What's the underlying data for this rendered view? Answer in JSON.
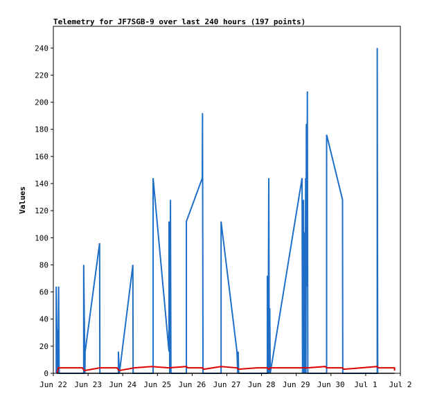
{
  "chart_data": {
    "type": "line",
    "title": "Telemetry for JF7SGB-9 over last 240 hours (197 points)",
    "xlabel": "",
    "ylabel": "Values",
    "grid": false,
    "legend": "none",
    "xlim": [
      "2021-06-22T00:00",
      "2021-07-02T00:00"
    ],
    "ylim": [
      0,
      256
    ],
    "x_ticks": [
      "Jun 22",
      "Jun 23",
      "Jun 24",
      "Jun 25",
      "Jun 26",
      "Jun 27",
      "Jun 28",
      "Jun 29",
      "Jun 30",
      "Jul 1",
      "Jul 2"
    ],
    "y_ticks": [
      0,
      20,
      40,
      60,
      80,
      100,
      120,
      140,
      160,
      180,
      200,
      220,
      240
    ],
    "colors": {
      "series_1": "#1e6ec8",
      "series_2": "#dd0000",
      "series_3": "#000000"
    },
    "series": [
      {
        "points": [
          [
            "2021-06-22T02:00",
            0
          ],
          [
            "2021-06-22T02:00",
            64
          ],
          [
            "2021-06-22T02:50",
            0
          ],
          [
            "2021-06-22T03:00",
            32
          ],
          [
            "2021-06-22T03:20",
            0
          ],
          [
            "2021-06-22T03:40",
            64
          ],
          [
            "2021-06-22T04:00",
            0
          ],
          [
            "2021-06-22T04:00",
            0
          ],
          [
            "2021-06-22T21:00",
            0
          ],
          [
            "2021-06-22T21:00",
            80
          ],
          [
            "2021-06-22T21:50",
            0
          ],
          [
            "2021-06-22T22:00",
            16
          ],
          [
            "2021-06-23T08:00",
            96
          ],
          [
            "2021-06-23T08:10",
            0
          ],
          [
            "2021-06-23T21:00",
            0
          ],
          [
            "2021-06-23T21:00",
            16
          ],
          [
            "2021-06-23T21:40",
            0
          ],
          [
            "2021-06-24T07:00",
            80
          ],
          [
            "2021-06-24T07:10",
            0
          ],
          [
            "2021-06-24T21:00",
            0
          ],
          [
            "2021-06-24T21:00",
            144
          ],
          [
            "2021-06-25T08:00",
            16
          ],
          [
            "2021-06-25T08:00",
            112
          ],
          [
            "2021-06-25T08:30",
            0
          ],
          [
            "2021-06-25T09:00",
            128
          ],
          [
            "2021-06-25T09:20",
            0
          ],
          [
            "2021-06-25T20:00",
            0
          ],
          [
            "2021-06-25T20:00",
            112
          ],
          [
            "2021-06-26T07:00",
            144
          ],
          [
            "2021-06-26T07:10",
            192
          ],
          [
            "2021-06-26T07:30",
            0
          ],
          [
            "2021-06-26T20:00",
            0
          ],
          [
            "2021-06-26T20:00",
            112
          ],
          [
            "2021-06-27T07:00",
            16
          ],
          [
            "2021-06-27T07:30",
            0
          ],
          [
            "2021-06-27T07:50",
            16
          ],
          [
            "2021-06-27T08:10",
            0
          ],
          [
            "2021-06-28T04:00",
            0
          ],
          [
            "2021-06-28T04:00",
            72
          ],
          [
            "2021-06-28T04:30",
            0
          ],
          [
            "2021-06-28T05:00",
            144
          ],
          [
            "2021-06-28T05:20",
            0
          ],
          [
            "2021-06-28T05:40",
            48
          ],
          [
            "2021-06-28T06:00",
            0
          ],
          [
            "2021-06-29T04:00",
            144
          ],
          [
            "2021-06-29T04:20",
            0
          ],
          [
            "2021-06-29T05:00",
            128
          ],
          [
            "2021-06-29T05:20",
            0
          ],
          [
            "2021-06-29T05:40",
            104
          ],
          [
            "2021-06-29T06:00",
            0
          ],
          [
            "2021-06-29T06:30",
            144
          ],
          [
            "2021-06-29T06:40",
            0
          ],
          [
            "2021-06-29T07:00",
            184
          ],
          [
            "2021-06-29T07:20",
            64
          ],
          [
            "2021-06-29T07:40",
            208
          ],
          [
            "2021-06-29T08:00",
            0
          ],
          [
            "2021-06-29T21:00",
            0
          ],
          [
            "2021-06-29T21:00",
            176
          ],
          [
            "2021-06-30T08:00",
            128
          ],
          [
            "2021-06-30T08:10",
            0
          ],
          [
            "2021-07-01T08:00",
            0
          ],
          [
            "2021-07-01T08:00",
            240
          ],
          [
            "2021-07-01T08:20",
            0
          ]
        ]
      },
      {
        "points": [
          [
            "2021-06-22T02:30",
            0
          ],
          [
            "2021-06-22T03:30",
            4
          ],
          [
            "2021-06-22T04:30",
            4
          ],
          [
            "2021-06-22T20:00",
            4
          ],
          [
            "2021-06-22T21:30",
            2
          ],
          [
            "2021-06-23T08:00",
            4
          ],
          [
            "2021-06-23T20:00",
            4
          ],
          [
            "2021-06-23T21:30",
            2
          ],
          [
            "2021-06-24T08:00",
            4
          ],
          [
            "2021-06-24T20:00",
            5
          ],
          [
            "2021-06-25T08:00",
            4
          ],
          [
            "2021-06-25T20:00",
            5
          ],
          [
            "2021-06-25T21:00",
            4
          ],
          [
            "2021-06-26T07:00",
            4
          ],
          [
            "2021-06-26T08:00",
            3
          ],
          [
            "2021-06-26T20:00",
            5
          ],
          [
            "2021-06-27T07:00",
            4
          ],
          [
            "2021-06-27T08:00",
            3
          ],
          [
            "2021-06-27T21:00",
            4
          ],
          [
            "2021-06-28T04:00",
            4
          ],
          [
            "2021-06-28T05:00",
            3
          ],
          [
            "2021-06-28T06:00",
            4
          ],
          [
            "2021-06-29T04:00",
            4
          ],
          [
            "2021-06-29T08:00",
            4
          ],
          [
            "2021-06-29T20:00",
            5
          ],
          [
            "2021-06-29T21:00",
            4
          ],
          [
            "2021-06-30T08:00",
            4
          ],
          [
            "2021-06-30T09:00",
            3
          ],
          [
            "2021-07-01T08:00",
            5
          ],
          [
            "2021-07-01T09:00",
            4
          ],
          [
            "2021-07-01T20:00",
            4
          ],
          [
            "2021-07-01T20:00",
            2
          ]
        ]
      },
      {
        "points": [
          [
            "2021-06-22T02:00",
            0
          ],
          [
            "2021-07-01T20:00",
            0
          ]
        ]
      }
    ]
  }
}
